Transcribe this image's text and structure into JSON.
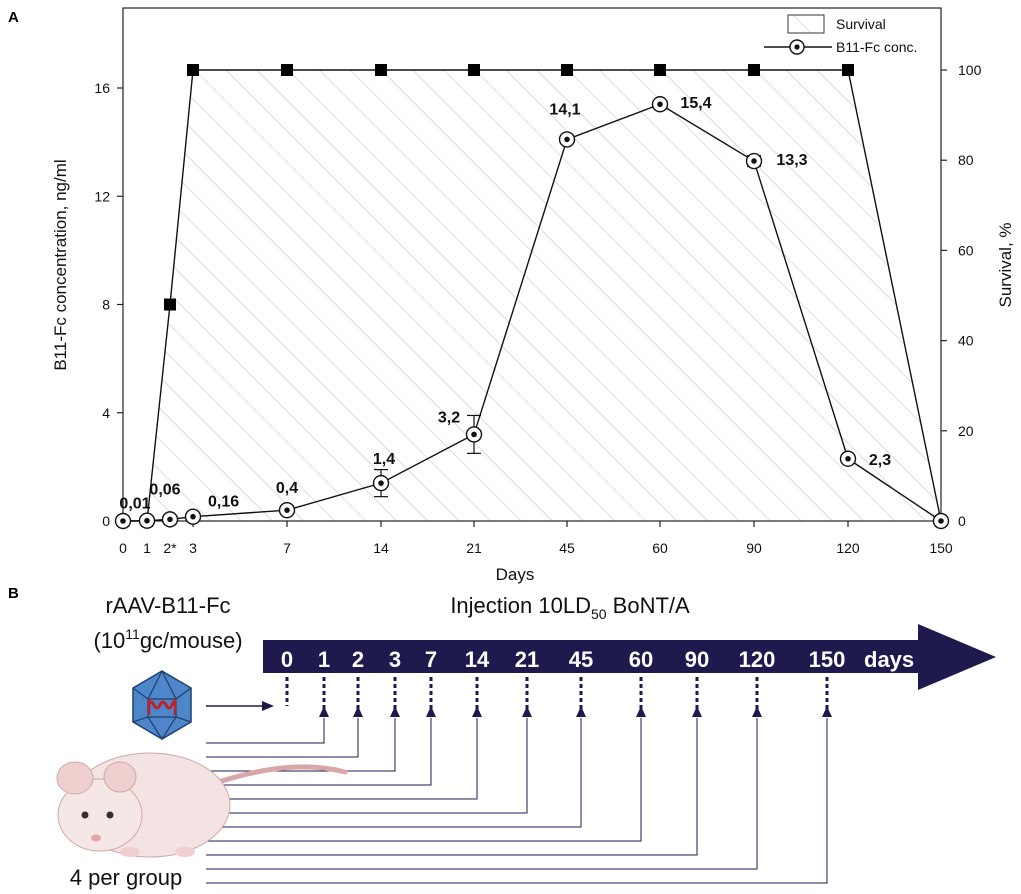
{
  "panel_a_label": "A",
  "panel_b_label": "B",
  "chart_data": {
    "type": "line",
    "x_categories": [
      "0",
      "1",
      "2*",
      "3",
      "7",
      "14",
      "21",
      "45",
      "60",
      "90",
      "120",
      "150"
    ],
    "xlabel": "Days",
    "ylabel_left": "B11-Fc concentration, ng/ml",
    "ylabel_right": "Survival, %",
    "ylim_left": [
      0,
      18
    ],
    "ylim_right": [
      0,
      100
    ],
    "yticks_left": [
      "0",
      "4",
      "8",
      "12",
      "16"
    ],
    "yticks_right": [
      "0",
      "20",
      "40",
      "60",
      "80",
      "100"
    ],
    "legend_position": "top-right",
    "series": [
      {
        "name": "Survival",
        "kind": "hatched-area-with-square-markers",
        "axis": "right",
        "x": [
          "0",
          "1",
          "2*",
          "3",
          "7",
          "14",
          "21",
          "45",
          "60",
          "90",
          "120",
          "150"
        ],
        "values": [
          0,
          0,
          48,
          100,
          100,
          100,
          100,
          100,
          100,
          100,
          100,
          0
        ]
      },
      {
        "name": "B11-Fc conc.",
        "kind": "line-with-circle-dot-markers",
        "axis": "left",
        "x": [
          "0",
          "1",
          "2*",
          "3",
          "7",
          "14",
          "21",
          "45",
          "60",
          "90",
          "120",
          "150"
        ],
        "values": [
          0,
          0.01,
          0.06,
          0.16,
          0.4,
          1.4,
          3.2,
          14.1,
          15.4,
          13.3,
          2.3,
          0
        ],
        "labels": [
          "",
          "0,01",
          "0,06",
          "0,16",
          "0,4",
          "1,4",
          "3,2",
          "14,1",
          "15,4",
          "13,3",
          "2,3",
          ""
        ],
        "error": [
          0,
          0,
          0,
          0,
          0,
          0.5,
          0.7,
          0,
          0,
          0.2,
          0,
          0
        ]
      }
    ]
  },
  "panel_b": {
    "vector_label": "rAAV-B11-Fc",
    "dose_prefix": "(10",
    "dose_exp": "11",
    "dose_suffix": "gc/mouse)",
    "injection_prefix": "Injection 10LD",
    "injection_sub": "50",
    "injection_suffix": " BoNT/A",
    "timeline_days": [
      "0",
      "1",
      "2",
      "3",
      "7",
      "14",
      "21",
      "45",
      "60",
      "90",
      "120",
      "150"
    ],
    "timeline_unit": "days",
    "group_label": "4 per group",
    "colors": {
      "timeline": "#1e1a4e",
      "virus": "#4d86c9",
      "virus_insert": "#c0202a",
      "mouse": "#f2dcdc"
    }
  }
}
